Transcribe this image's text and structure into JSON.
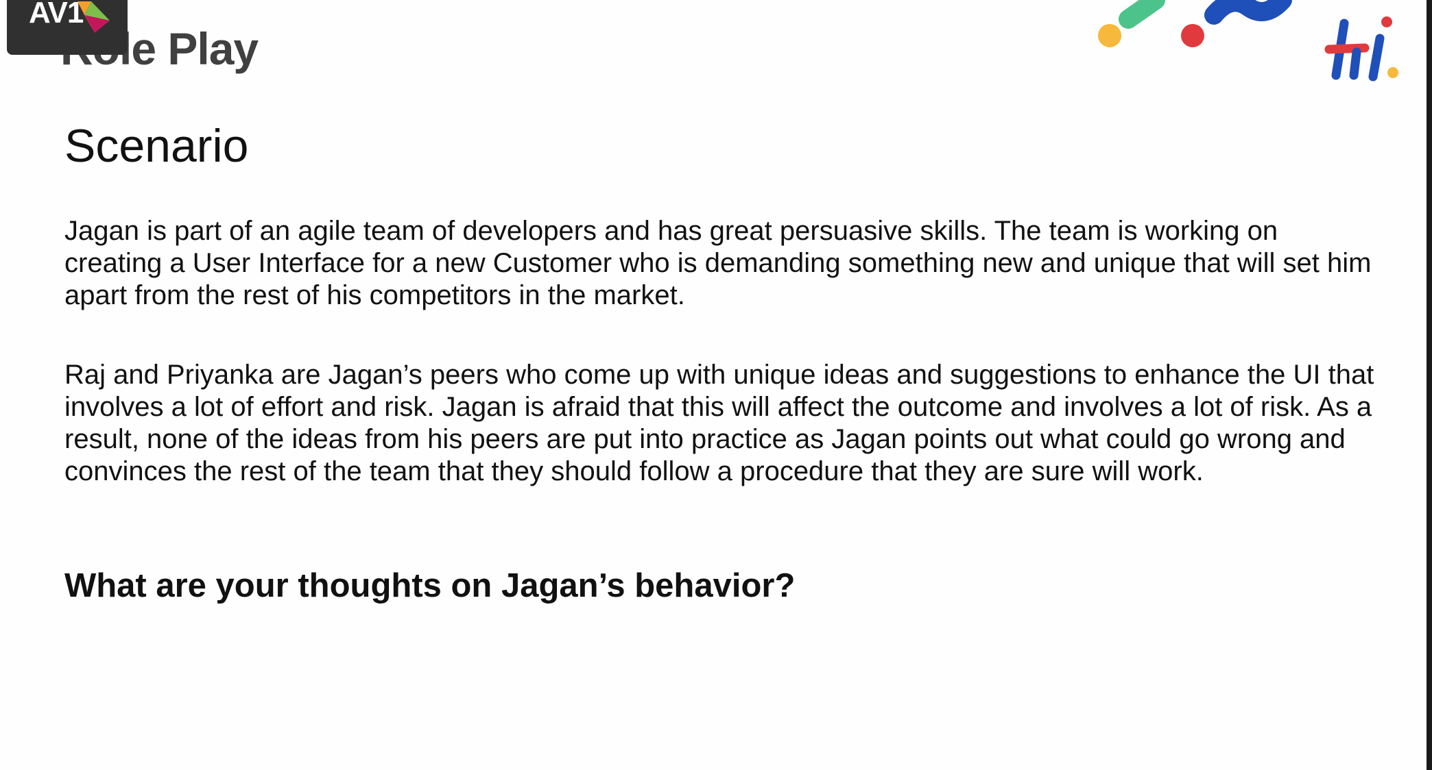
{
  "overlay_badge": {
    "text": "AV1"
  },
  "slide": {
    "title": "Role Play",
    "section_heading": "Scenario",
    "paragraphs": [
      "Jagan is part of an agile team of developers and has great persuasive skills. The team is working on creating a User Interface for a new Customer who is demanding something new and unique that will set him apart from the rest of his competitors in the market.",
      "Raj and Priyanka are Jagan’s peers who come up with unique ideas and suggestions to enhance the UI that involves a lot of effort and risk. Jagan is afraid that this will affect the outcome and involves a lot of risk. As a result, none of the ideas from his peers are put into practice as Jagan points out what could go wrong and convinces the rest of the team that they should follow a procedure that they are sure will work."
    ],
    "question": "What are your thoughts on Jagan’s behavior?"
  },
  "branding": {
    "logo_icon": "hi-logo-icon",
    "decor_icon": "color-dots-decor-icon",
    "colors": {
      "red": "#e03a3e",
      "blue": "#1f4fb8",
      "green": "#4cc38a",
      "yellow": "#f6b93b",
      "title_gray": "#404040",
      "badge_dark": "#303030"
    }
  }
}
